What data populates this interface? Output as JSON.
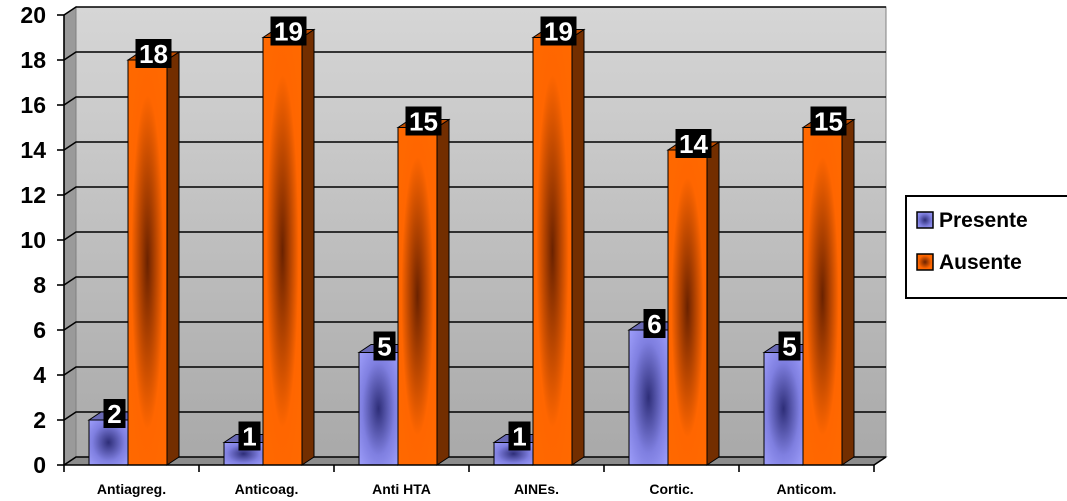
{
  "chart_data": {
    "type": "bar",
    "categories": [
      "Antiagreg.",
      "Anticoag.",
      "Anti HTA",
      "AINEs.",
      "Cortic.",
      "Anticom."
    ],
    "series": [
      {
        "name": "Presente",
        "values": [
          2,
          1,
          5,
          1,
          6,
          5
        ],
        "color": "#8c8cf0"
      },
      {
        "name": "Ausente",
        "values": [
          18,
          19,
          15,
          19,
          14,
          15
        ],
        "color": "#ff6600"
      }
    ],
    "ylim": [
      0,
      20
    ],
    "yticks": [
      0,
      2,
      4,
      6,
      8,
      10,
      12,
      14,
      16,
      18,
      20
    ],
    "grid": true,
    "three_d": true,
    "legend_position": "right",
    "data_labels": true,
    "plot_background": "#c0c0c0"
  }
}
